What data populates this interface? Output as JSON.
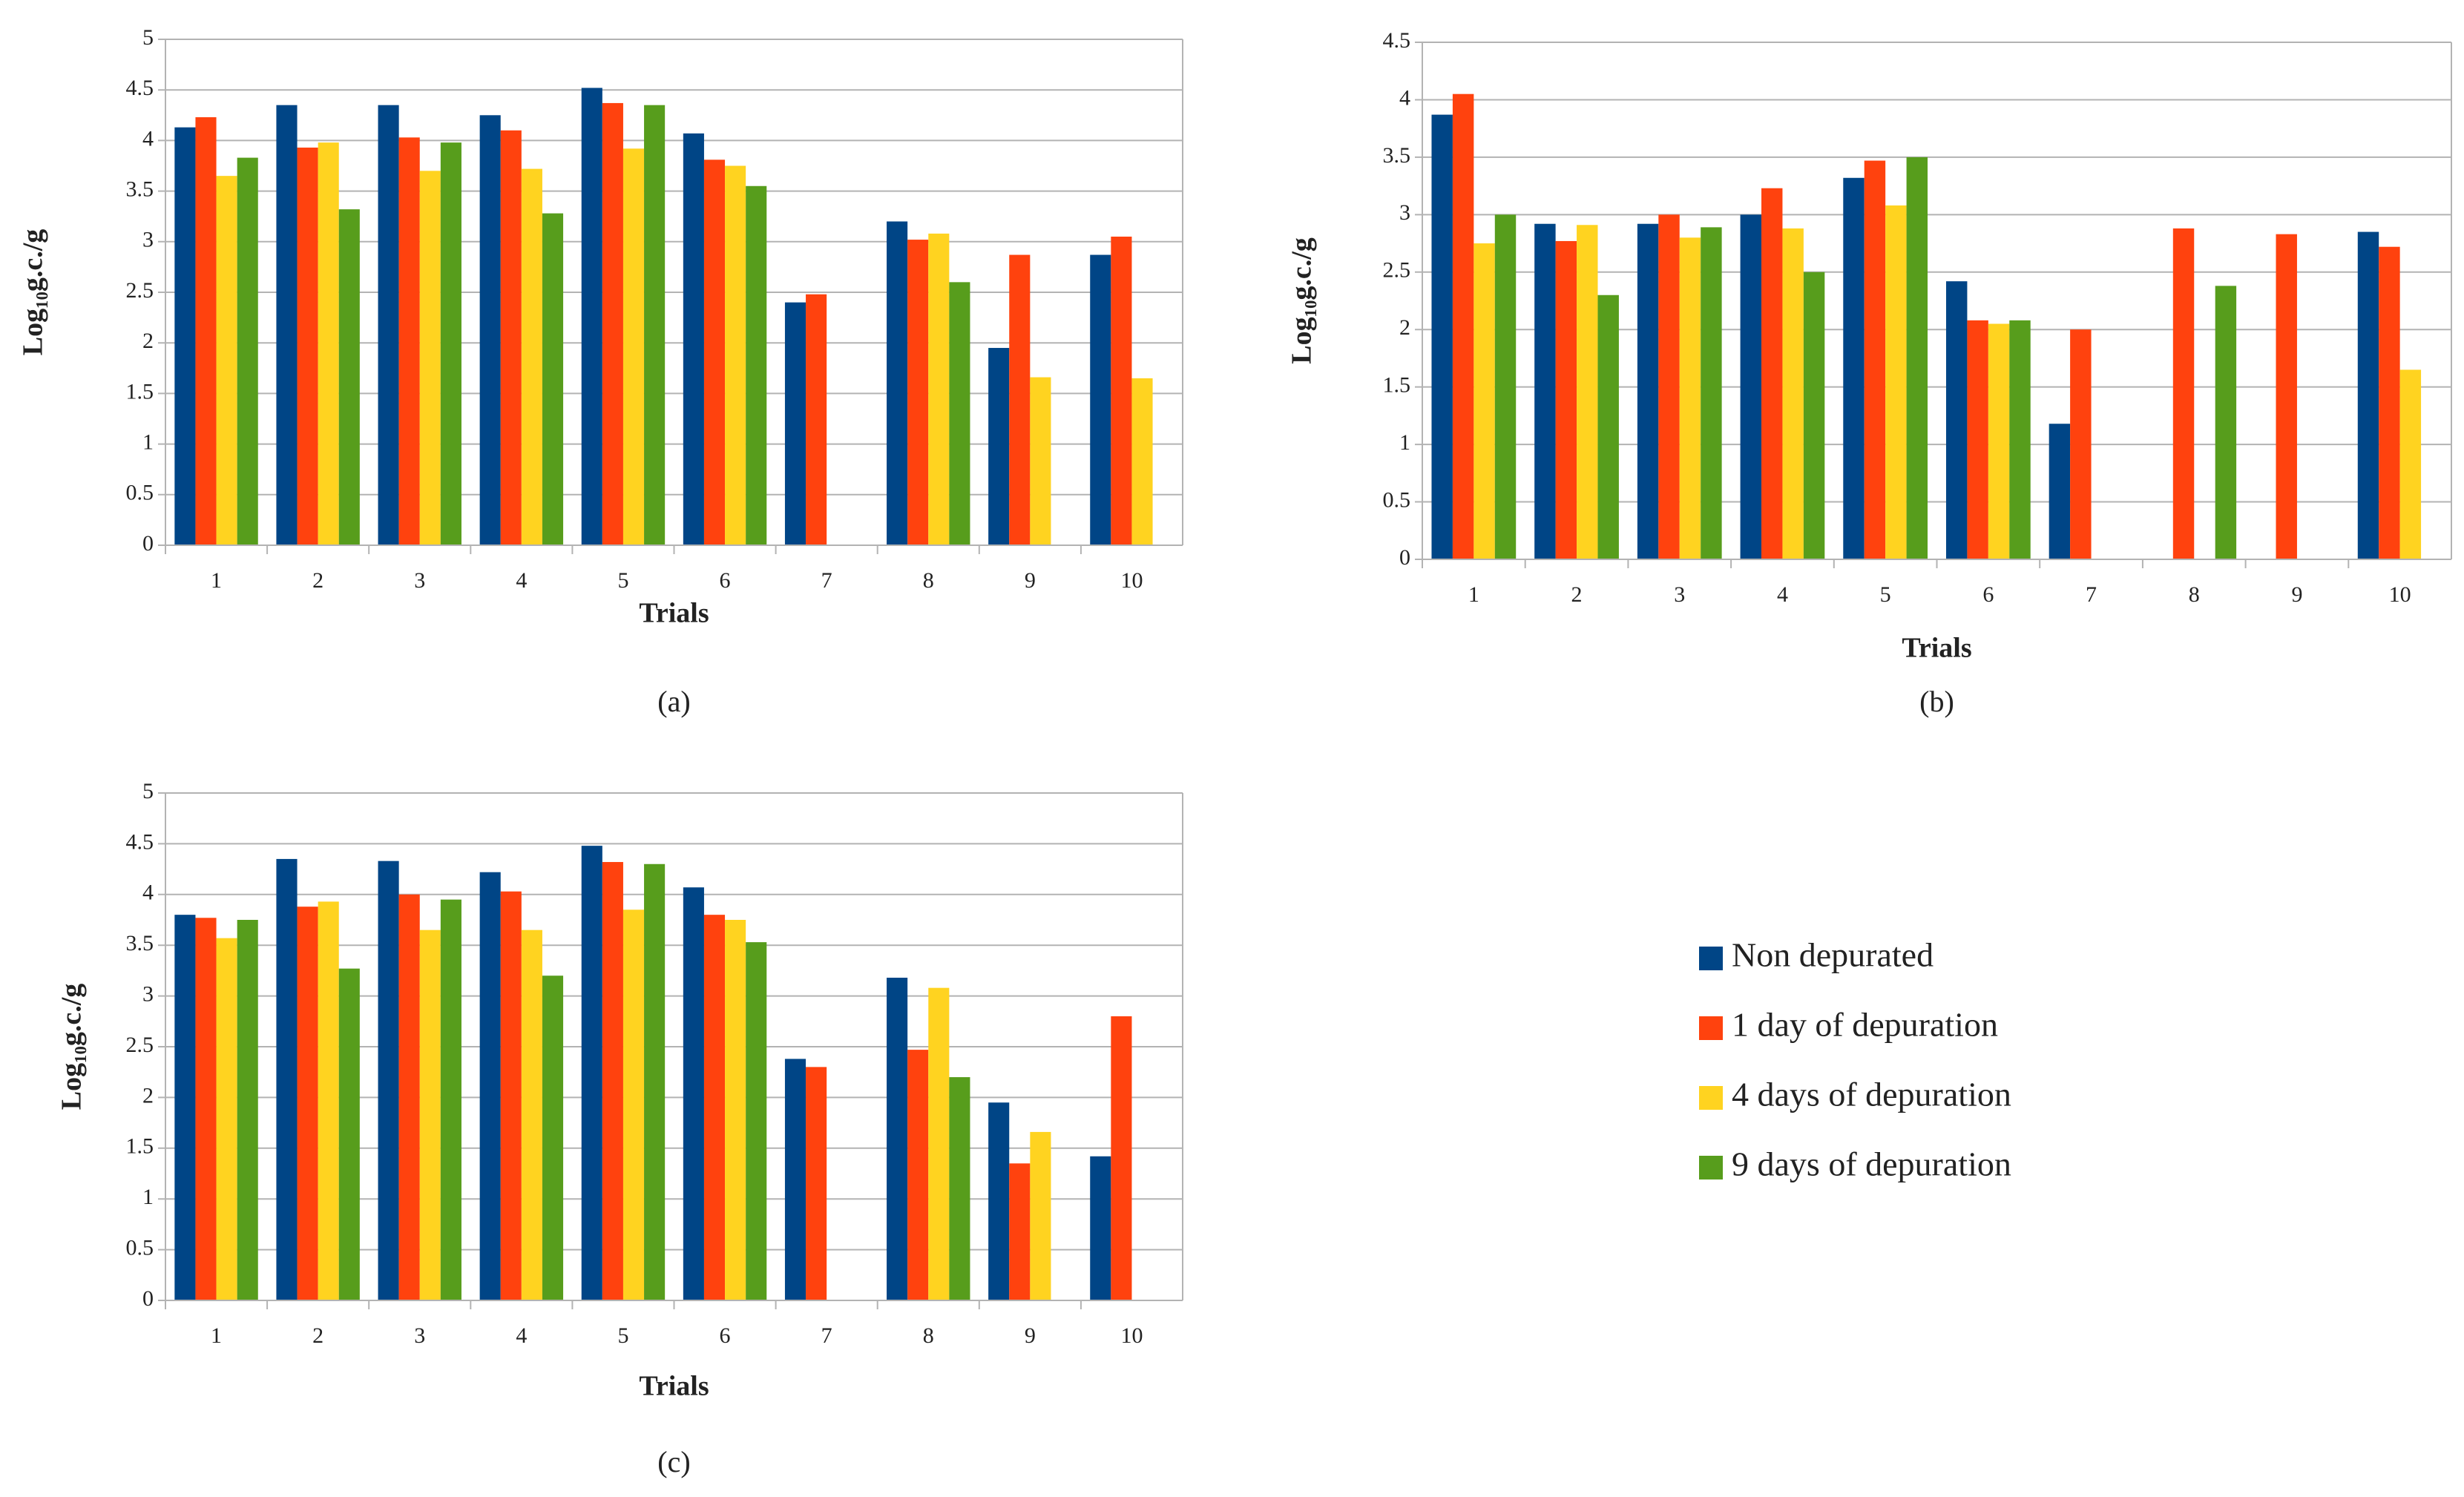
{
  "chart_data": [
    {
      "type": "bar",
      "caption": "(a)",
      "xlabel": "Trials",
      "ylabel": "Log₁₀g.c./g",
      "categories": [
        "1",
        "2",
        "3",
        "4",
        "5",
        "6",
        "7",
        "8",
        "9",
        "10"
      ],
      "ylim": [
        0,
        5
      ],
      "yticks": [
        0,
        0.5,
        1,
        1.5,
        2,
        2.5,
        3,
        3.5,
        4,
        4.5,
        5
      ],
      "grid": true,
      "series": [
        {
          "name": "Non depurated",
          "color": "#004586",
          "values": [
            4.13,
            4.35,
            4.35,
            4.25,
            4.52,
            4.07,
            2.4,
            3.2,
            1.95,
            2.87
          ]
        },
        {
          "name": "1 day of depuration",
          "color": "#ff420e",
          "values": [
            4.23,
            3.93,
            4.03,
            4.1,
            4.37,
            3.81,
            2.48,
            3.02,
            2.87,
            3.05
          ]
        },
        {
          "name": "4 days of depuration",
          "color": "#ffd320",
          "values": [
            3.65,
            3.98,
            3.7,
            3.72,
            3.92,
            3.75,
            null,
            3.08,
            1.66,
            1.65
          ]
        },
        {
          "name": "9 days of depuration",
          "color": "#579d1c",
          "values": [
            3.83,
            3.32,
            3.98,
            3.28,
            4.35,
            3.55,
            null,
            2.6,
            null,
            null
          ]
        }
      ]
    },
    {
      "type": "bar",
      "caption": "(b)",
      "xlabel": "Trials",
      "ylabel": "Log₁₀g.c./g",
      "categories": [
        "1",
        "2",
        "3",
        "4",
        "5",
        "6",
        "7",
        "8",
        "9",
        "10"
      ],
      "ylim": [
        0,
        4.5
      ],
      "yticks": [
        0,
        0.5,
        1,
        1.5,
        2,
        2.5,
        3,
        3.5,
        4,
        4.5
      ],
      "grid": true,
      "series": [
        {
          "name": "Non depurated",
          "color": "#004586",
          "values": [
            3.87,
            2.92,
            2.92,
            3.0,
            3.32,
            2.42,
            1.18,
            null,
            null,
            2.85
          ]
        },
        {
          "name": "1 day of depuration",
          "color": "#ff420e",
          "values": [
            4.05,
            2.77,
            3.0,
            3.23,
            3.47,
            2.08,
            2.0,
            2.88,
            2.83,
            2.72
          ]
        },
        {
          "name": "4 days of depuration",
          "color": "#ffd320",
          "values": [
            2.75,
            2.91,
            2.8,
            2.88,
            3.08,
            2.05,
            null,
            null,
            null,
            1.65
          ]
        },
        {
          "name": "9 days of depuration",
          "color": "#579d1c",
          "values": [
            3.0,
            2.3,
            2.89,
            2.5,
            3.5,
            2.08,
            null,
            2.38,
            null,
            null
          ]
        }
      ]
    },
    {
      "type": "bar",
      "caption": "(c)",
      "xlabel": "Trials",
      "ylabel": "Log₁₀g.c./g",
      "categories": [
        "1",
        "2",
        "3",
        "4",
        "5",
        "6",
        "7",
        "8",
        "9",
        "10"
      ],
      "ylim": [
        0,
        5
      ],
      "yticks": [
        0,
        0.5,
        1,
        1.5,
        2,
        2.5,
        3,
        3.5,
        4,
        4.5,
        5
      ],
      "grid": true,
      "series": [
        {
          "name": "Non depurated",
          "color": "#004586",
          "values": [
            3.8,
            4.35,
            4.33,
            4.22,
            4.48,
            4.07,
            2.38,
            3.18,
            1.95,
            1.42
          ]
        },
        {
          "name": "1 day of depuration",
          "color": "#ff420e",
          "values": [
            3.77,
            3.88,
            4.0,
            4.03,
            4.32,
            3.8,
            2.3,
            2.47,
            1.35,
            2.8
          ]
        },
        {
          "name": "4 days of depuration",
          "color": "#ffd320",
          "values": [
            3.57,
            3.93,
            3.65,
            3.65,
            3.85,
            3.75,
            null,
            3.08,
            1.66,
            null
          ]
        },
        {
          "name": "9 days of depuration",
          "color": "#579d1c",
          "values": [
            3.75,
            3.27,
            3.95,
            3.2,
            4.3,
            3.53,
            null,
            2.2,
            null,
            null
          ]
        }
      ]
    }
  ]
}
